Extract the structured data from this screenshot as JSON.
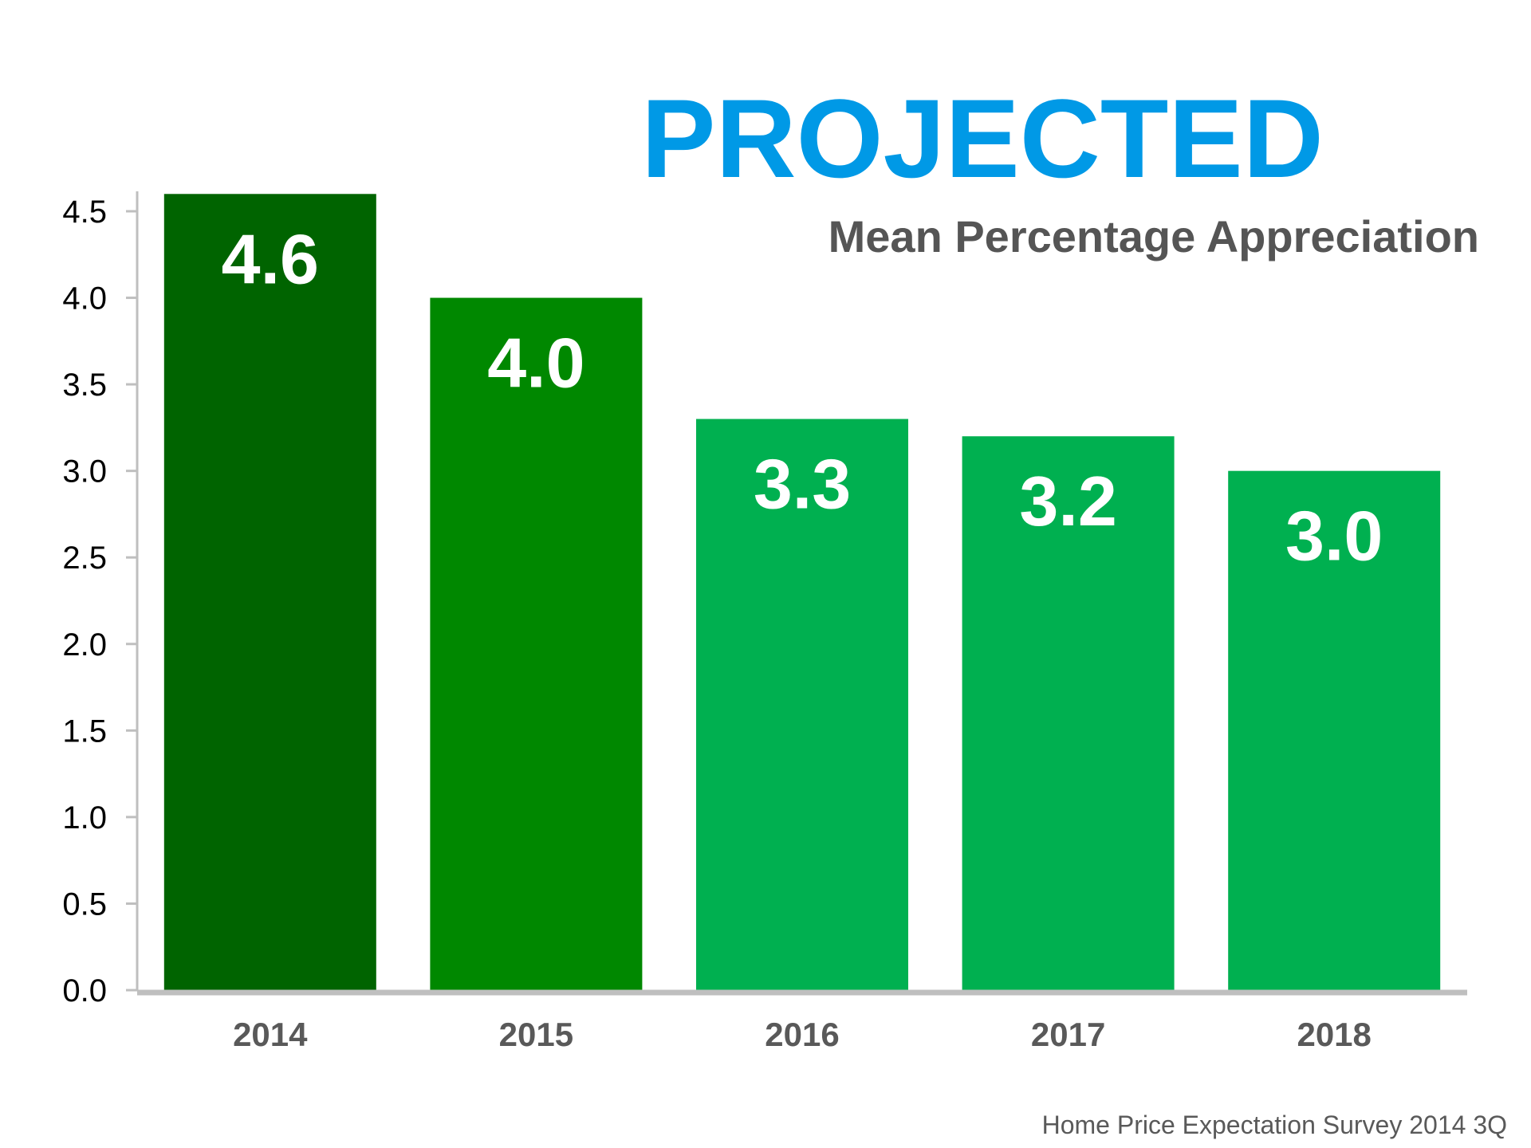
{
  "chart_data": {
    "type": "bar",
    "title": "PROJECTED",
    "subtitle": "Mean Percentage Appreciation",
    "categories": [
      "2014",
      "2015",
      "2016",
      "2017",
      "2018"
    ],
    "values": [
      4.6,
      4.0,
      3.3,
      3.2,
      3.0
    ],
    "data_labels": [
      "4.6",
      "4.0",
      "3.3",
      "3.2",
      "3.0"
    ],
    "bar_colors": [
      "#006400",
      "#008800",
      "#00b050",
      "#00b050",
      "#00b050"
    ],
    "ylim": [
      0,
      4.5
    ],
    "yticks": [
      0.0,
      0.5,
      1.0,
      1.5,
      2.0,
      2.5,
      3.0,
      3.5,
      4.0,
      4.5
    ],
    "ytick_labels": [
      "0.0",
      "0.5",
      "1.0",
      "1.5",
      "2.0",
      "2.5",
      "3.0",
      "3.5",
      "4.0",
      "4.5"
    ],
    "xlabel": "",
    "ylabel": "",
    "grid": false,
    "source": "Home Price Expectation Survey 2014 3Q",
    "colors": {
      "title": "#0099e6",
      "subtitle": "#555555",
      "axis": "#bfbfbf"
    }
  }
}
